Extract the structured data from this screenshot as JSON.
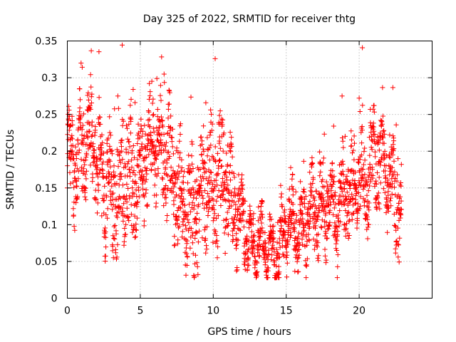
{
  "chart_data": {
    "type": "scatter",
    "title": "Day 325 of 2022, SRMTID for receiver thtg",
    "xlabel": "GPS time / hours",
    "ylabel": "SRMTID / TECUs",
    "xlim": [
      0,
      25
    ],
    "ylim": [
      0,
      0.35
    ],
    "xticks": [
      0,
      5,
      10,
      15,
      20
    ],
    "xtick_labels": [
      "0",
      "5",
      "10",
      "15",
      "20"
    ],
    "yticks": [
      0,
      0.05,
      0.1,
      0.15,
      0.2,
      0.25,
      0.3,
      0.35
    ],
    "ytick_labels": [
      "0",
      "0.05",
      "0.1",
      "0.15",
      "0.2",
      "0.25",
      "0.3",
      "0.35"
    ],
    "grid": true,
    "marker": "+",
    "color": "#ff0000",
    "series": [
      {
        "name": "SRMTID",
        "x_range": [
          0,
          22.9
        ],
        "sample_interval_hours": 0.01,
        "note": "dense cloud of points; trend values below",
        "trend_hours": [
          0,
          0.5,
          1,
          1.5,
          2,
          2.5,
          3,
          3.5,
          4,
          4.5,
          5,
          5.5,
          6,
          6.5,
          7,
          7.5,
          8,
          8.5,
          9,
          9.5,
          10,
          10.5,
          11,
          11.5,
          12,
          12.5,
          13,
          13.5,
          14,
          14.5,
          15,
          15.5,
          16,
          16.5,
          17,
          17.5,
          18,
          18.5,
          19,
          19.5,
          20,
          20.5,
          21,
          21.5,
          22,
          22.5,
          22.9
        ],
        "trend_values": [
          0.19,
          0.18,
          0.2,
          0.21,
          0.19,
          0.15,
          0.14,
          0.13,
          0.18,
          0.15,
          0.17,
          0.2,
          0.21,
          0.2,
          0.19,
          0.15,
          0.12,
          0.11,
          0.13,
          0.16,
          0.15,
          0.17,
          0.16,
          0.12,
          0.1,
          0.08,
          0.07,
          0.07,
          0.06,
          0.06,
          0.1,
          0.1,
          0.09,
          0.11,
          0.12,
          0.12,
          0.13,
          0.12,
          0.14,
          0.14,
          0.17,
          0.16,
          0.19,
          0.19,
          0.17,
          0.14,
          0.11
        ],
        "spread_values": [
          0.04,
          0.05,
          0.05,
          0.05,
          0.05,
          0.06,
          0.06,
          0.06,
          0.07,
          0.06,
          0.05,
          0.05,
          0.05,
          0.05,
          0.06,
          0.06,
          0.06,
          0.06,
          0.07,
          0.07,
          0.07,
          0.07,
          0.06,
          0.05,
          0.03,
          0.025,
          0.02,
          0.02,
          0.02,
          0.025,
          0.03,
          0.03,
          0.03,
          0.035,
          0.04,
          0.04,
          0.045,
          0.045,
          0.045,
          0.05,
          0.05,
          0.05,
          0.05,
          0.05,
          0.05,
          0.05,
          0.04
        ]
      }
    ]
  }
}
